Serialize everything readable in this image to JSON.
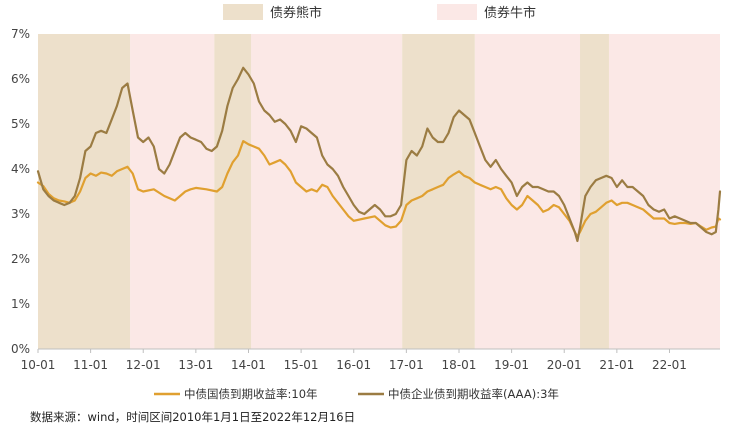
{
  "regime_legend": {
    "bear_label": "债券熊市",
    "bull_label": "债券牛市"
  },
  "series_legend": {
    "gov_label": "中债国债到期收益率:10年",
    "corp_label": "中债企业债到期收益率(AAA):3年"
  },
  "source_note": "数据来源：wind，时间区间2010年1月1日至2022年12月16日",
  "colors": {
    "bear": "#ede0cb",
    "bull": "#fbe8e6",
    "gov": "#e0a030",
    "corp": "#9b7c43",
    "axis": "#bfbfbf",
    "text": "#444444"
  },
  "chart_data": {
    "type": "line",
    "x_ticks": [
      "10-01",
      "11-01",
      "12-01",
      "13-01",
      "14-01",
      "15-01",
      "16-01",
      "17-01",
      "18-01",
      "19-01",
      "20-01",
      "21-01",
      "22-01"
    ],
    "y_ticks": [
      "0%",
      "1%",
      "2%",
      "3%",
      "4%",
      "5%",
      "6%",
      "7%"
    ],
    "ylim": [
      0,
      7
    ],
    "xlim": [
      2010.0,
      2022.96
    ],
    "y_unit": "%",
    "bear_periods": [
      [
        2010.0,
        2011.75
      ],
      [
        2013.35,
        2014.05
      ],
      [
        2016.92,
        2018.3
      ],
      [
        2020.3,
        2020.85
      ]
    ],
    "bull_periods": [
      [
        2011.75,
        2013.35
      ],
      [
        2014.05,
        2016.92
      ],
      [
        2018.3,
        2020.3
      ],
      [
        2020.85,
        2022.96
      ]
    ],
    "series": [
      {
        "name": "中债国债到期收益率:10年",
        "color": "#e0a030",
        "points": [
          [
            2010.0,
            3.7
          ],
          [
            2010.1,
            3.62
          ],
          [
            2010.2,
            3.45
          ],
          [
            2010.3,
            3.35
          ],
          [
            2010.4,
            3.3
          ],
          [
            2010.5,
            3.28
          ],
          [
            2010.6,
            3.25
          ],
          [
            2010.7,
            3.3
          ],
          [
            2010.8,
            3.5
          ],
          [
            2010.9,
            3.8
          ],
          [
            2011.0,
            3.9
          ],
          [
            2011.1,
            3.85
          ],
          [
            2011.2,
            3.92
          ],
          [
            2011.3,
            3.9
          ],
          [
            2011.4,
            3.85
          ],
          [
            2011.5,
            3.95
          ],
          [
            2011.6,
            4.0
          ],
          [
            2011.7,
            4.05
          ],
          [
            2011.8,
            3.9
          ],
          [
            2011.9,
            3.55
          ],
          [
            2012.0,
            3.5
          ],
          [
            2012.2,
            3.55
          ],
          [
            2012.4,
            3.4
          ],
          [
            2012.5,
            3.35
          ],
          [
            2012.6,
            3.3
          ],
          [
            2012.7,
            3.4
          ],
          [
            2012.8,
            3.5
          ],
          [
            2012.9,
            3.55
          ],
          [
            2013.0,
            3.58
          ],
          [
            2013.2,
            3.55
          ],
          [
            2013.4,
            3.5
          ],
          [
            2013.5,
            3.6
          ],
          [
            2013.6,
            3.9
          ],
          [
            2013.7,
            4.15
          ],
          [
            2013.8,
            4.3
          ],
          [
            2013.9,
            4.62
          ],
          [
            2014.0,
            4.55
          ],
          [
            2014.1,
            4.5
          ],
          [
            2014.2,
            4.45
          ],
          [
            2014.3,
            4.3
          ],
          [
            2014.4,
            4.1
          ],
          [
            2014.5,
            4.15
          ],
          [
            2014.6,
            4.2
          ],
          [
            2014.7,
            4.1
          ],
          [
            2014.8,
            3.95
          ],
          [
            2014.9,
            3.7
          ],
          [
            2015.0,
            3.6
          ],
          [
            2015.1,
            3.5
          ],
          [
            2015.2,
            3.55
          ],
          [
            2015.3,
            3.5
          ],
          [
            2015.4,
            3.65
          ],
          [
            2015.5,
            3.6
          ],
          [
            2015.6,
            3.4
          ],
          [
            2015.7,
            3.25
          ],
          [
            2015.8,
            3.1
          ],
          [
            2015.9,
            2.95
          ],
          [
            2016.0,
            2.85
          ],
          [
            2016.2,
            2.9
          ],
          [
            2016.4,
            2.95
          ],
          [
            2016.5,
            2.85
          ],
          [
            2016.6,
            2.75
          ],
          [
            2016.7,
            2.7
          ],
          [
            2016.8,
            2.72
          ],
          [
            2016.9,
            2.85
          ],
          [
            2017.0,
            3.2
          ],
          [
            2017.1,
            3.3
          ],
          [
            2017.2,
            3.35
          ],
          [
            2017.3,
            3.4
          ],
          [
            2017.4,
            3.5
          ],
          [
            2017.5,
            3.55
          ],
          [
            2017.6,
            3.6
          ],
          [
            2017.7,
            3.65
          ],
          [
            2017.8,
            3.8
          ],
          [
            2017.9,
            3.88
          ],
          [
            2018.0,
            3.95
          ],
          [
            2018.1,
            3.85
          ],
          [
            2018.2,
            3.8
          ],
          [
            2018.3,
            3.7
          ],
          [
            2018.4,
            3.65
          ],
          [
            2018.5,
            3.6
          ],
          [
            2018.6,
            3.55
          ],
          [
            2018.7,
            3.6
          ],
          [
            2018.8,
            3.55
          ],
          [
            2018.9,
            3.35
          ],
          [
            2019.0,
            3.2
          ],
          [
            2019.1,
            3.1
          ],
          [
            2019.2,
            3.2
          ],
          [
            2019.3,
            3.4
          ],
          [
            2019.4,
            3.3
          ],
          [
            2019.5,
            3.2
          ],
          [
            2019.6,
            3.05
          ],
          [
            2019.7,
            3.1
          ],
          [
            2019.8,
            3.2
          ],
          [
            2019.9,
            3.15
          ],
          [
            2020.0,
            3.0
          ],
          [
            2020.1,
            2.85
          ],
          [
            2020.2,
            2.6
          ],
          [
            2020.25,
            2.5
          ],
          [
            2020.3,
            2.6
          ],
          [
            2020.4,
            2.85
          ],
          [
            2020.5,
            3.0
          ],
          [
            2020.6,
            3.05
          ],
          [
            2020.7,
            3.15
          ],
          [
            2020.8,
            3.25
          ],
          [
            2020.9,
            3.3
          ],
          [
            2021.0,
            3.2
          ],
          [
            2021.1,
            3.25
          ],
          [
            2021.2,
            3.25
          ],
          [
            2021.3,
            3.2
          ],
          [
            2021.4,
            3.15
          ],
          [
            2021.5,
            3.1
          ],
          [
            2021.6,
            3.0
          ],
          [
            2021.7,
            2.9
          ],
          [
            2021.8,
            2.9
          ],
          [
            2021.9,
            2.9
          ],
          [
            2022.0,
            2.8
          ],
          [
            2022.1,
            2.78
          ],
          [
            2022.2,
            2.8
          ],
          [
            2022.3,
            2.8
          ],
          [
            2022.4,
            2.78
          ],
          [
            2022.5,
            2.8
          ],
          [
            2022.6,
            2.72
          ],
          [
            2022.7,
            2.65
          ],
          [
            2022.8,
            2.7
          ],
          [
            2022.88,
            2.72
          ],
          [
            2022.93,
            2.9
          ],
          [
            2022.96,
            2.88
          ]
        ]
      },
      {
        "name": "中债企业债到期收益率(AAA):3年",
        "color": "#9b7c43",
        "points": [
          [
            2010.0,
            3.95
          ],
          [
            2010.1,
            3.55
          ],
          [
            2010.2,
            3.4
          ],
          [
            2010.3,
            3.3
          ],
          [
            2010.4,
            3.25
          ],
          [
            2010.5,
            3.2
          ],
          [
            2010.6,
            3.25
          ],
          [
            2010.7,
            3.4
          ],
          [
            2010.8,
            3.8
          ],
          [
            2010.9,
            4.4
          ],
          [
            2011.0,
            4.5
          ],
          [
            2011.1,
            4.8
          ],
          [
            2011.2,
            4.85
          ],
          [
            2011.3,
            4.8
          ],
          [
            2011.4,
            5.1
          ],
          [
            2011.5,
            5.4
          ],
          [
            2011.6,
            5.8
          ],
          [
            2011.7,
            5.9
          ],
          [
            2011.8,
            5.3
          ],
          [
            2011.9,
            4.7
          ],
          [
            2012.0,
            4.6
          ],
          [
            2012.1,
            4.7
          ],
          [
            2012.2,
            4.5
          ],
          [
            2012.3,
            4.0
          ],
          [
            2012.4,
            3.9
          ],
          [
            2012.5,
            4.1
          ],
          [
            2012.6,
            4.4
          ],
          [
            2012.7,
            4.7
          ],
          [
            2012.8,
            4.8
          ],
          [
            2012.9,
            4.7
          ],
          [
            2013.0,
            4.65
          ],
          [
            2013.1,
            4.6
          ],
          [
            2013.2,
            4.45
          ],
          [
            2013.3,
            4.4
          ],
          [
            2013.4,
            4.5
          ],
          [
            2013.5,
            4.85
          ],
          [
            2013.6,
            5.4
          ],
          [
            2013.7,
            5.8
          ],
          [
            2013.8,
            6.0
          ],
          [
            2013.9,
            6.25
          ],
          [
            2014.0,
            6.1
          ],
          [
            2014.1,
            5.9
          ],
          [
            2014.2,
            5.5
          ],
          [
            2014.3,
            5.3
          ],
          [
            2014.4,
            5.2
          ],
          [
            2014.5,
            5.05
          ],
          [
            2014.6,
            5.1
          ],
          [
            2014.7,
            5.0
          ],
          [
            2014.8,
            4.85
          ],
          [
            2014.9,
            4.6
          ],
          [
            2015.0,
            4.95
          ],
          [
            2015.1,
            4.9
          ],
          [
            2015.2,
            4.8
          ],
          [
            2015.3,
            4.7
          ],
          [
            2015.4,
            4.3
          ],
          [
            2015.5,
            4.1
          ],
          [
            2015.6,
            4.0
          ],
          [
            2015.7,
            3.85
          ],
          [
            2015.8,
            3.6
          ],
          [
            2015.9,
            3.4
          ],
          [
            2016.0,
            3.2
          ],
          [
            2016.1,
            3.05
          ],
          [
            2016.2,
            3.0
          ],
          [
            2016.3,
            3.1
          ],
          [
            2016.4,
            3.2
          ],
          [
            2016.5,
            3.1
          ],
          [
            2016.6,
            2.95
          ],
          [
            2016.7,
            2.95
          ],
          [
            2016.8,
            3.0
          ],
          [
            2016.9,
            3.2
          ],
          [
            2017.0,
            4.2
          ],
          [
            2017.1,
            4.4
          ],
          [
            2017.2,
            4.3
          ],
          [
            2017.3,
            4.5
          ],
          [
            2017.4,
            4.9
          ],
          [
            2017.5,
            4.7
          ],
          [
            2017.6,
            4.6
          ],
          [
            2017.7,
            4.6
          ],
          [
            2017.8,
            4.8
          ],
          [
            2017.9,
            5.15
          ],
          [
            2018.0,
            5.3
          ],
          [
            2018.1,
            5.2
          ],
          [
            2018.2,
            5.1
          ],
          [
            2018.3,
            4.8
          ],
          [
            2018.4,
            4.5
          ],
          [
            2018.5,
            4.2
          ],
          [
            2018.6,
            4.05
          ],
          [
            2018.7,
            4.2
          ],
          [
            2018.8,
            4.0
          ],
          [
            2018.9,
            3.85
          ],
          [
            2019.0,
            3.7
          ],
          [
            2019.1,
            3.4
          ],
          [
            2019.2,
            3.6
          ],
          [
            2019.3,
            3.7
          ],
          [
            2019.4,
            3.6
          ],
          [
            2019.5,
            3.6
          ],
          [
            2019.6,
            3.55
          ],
          [
            2019.7,
            3.5
          ],
          [
            2019.8,
            3.5
          ],
          [
            2019.9,
            3.4
          ],
          [
            2020.0,
            3.2
          ],
          [
            2020.1,
            2.9
          ],
          [
            2020.2,
            2.6
          ],
          [
            2020.25,
            2.4
          ],
          [
            2020.3,
            2.7
          ],
          [
            2020.4,
            3.4
          ],
          [
            2020.5,
            3.6
          ],
          [
            2020.6,
            3.75
          ],
          [
            2020.7,
            3.8
          ],
          [
            2020.8,
            3.85
          ],
          [
            2020.9,
            3.8
          ],
          [
            2021.0,
            3.6
          ],
          [
            2021.1,
            3.75
          ],
          [
            2021.2,
            3.6
          ],
          [
            2021.3,
            3.6
          ],
          [
            2021.4,
            3.5
          ],
          [
            2021.5,
            3.4
          ],
          [
            2021.6,
            3.2
          ],
          [
            2021.7,
            3.1
          ],
          [
            2021.8,
            3.05
          ],
          [
            2021.9,
            3.1
          ],
          [
            2022.0,
            2.9
          ],
          [
            2022.1,
            2.95
          ],
          [
            2022.2,
            2.9
          ],
          [
            2022.3,
            2.85
          ],
          [
            2022.4,
            2.8
          ],
          [
            2022.5,
            2.8
          ],
          [
            2022.6,
            2.7
          ],
          [
            2022.7,
            2.6
          ],
          [
            2022.8,
            2.55
          ],
          [
            2022.88,
            2.6
          ],
          [
            2022.93,
            3.1
          ],
          [
            2022.96,
            3.5
          ]
        ]
      }
    ]
  }
}
